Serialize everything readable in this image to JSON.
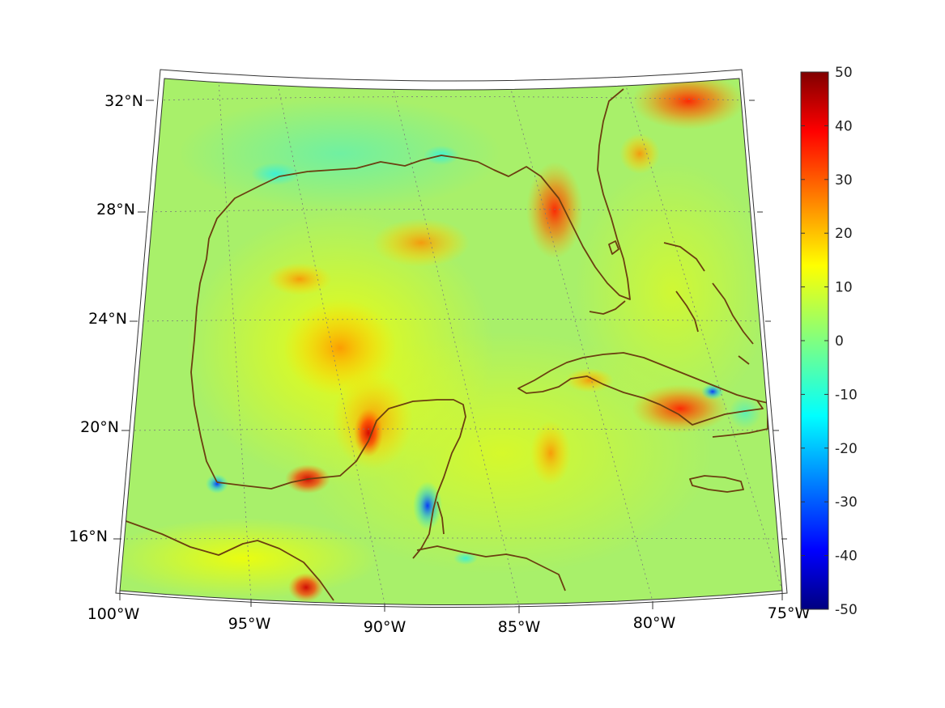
{
  "map": {
    "lon_labels": [
      "100°W",
      "95°W",
      "90°W",
      "85°W",
      "80°W",
      "75°W"
    ],
    "lat_labels": [
      "16°N",
      "20°N",
      "24°N",
      "28°N",
      "32°N"
    ]
  },
  "colorbar": {
    "tick_labels": [
      "50",
      "40",
      "30",
      "20",
      "10",
      "0",
      "-10",
      "-20",
      "-30",
      "-40",
      "-50"
    ],
    "min": -50,
    "max": 50,
    "colormap": "jet"
  },
  "colors": {
    "background_field": "#a8f06a",
    "coastline": "#6b3f10",
    "grid": "#7a7a7a"
  }
}
